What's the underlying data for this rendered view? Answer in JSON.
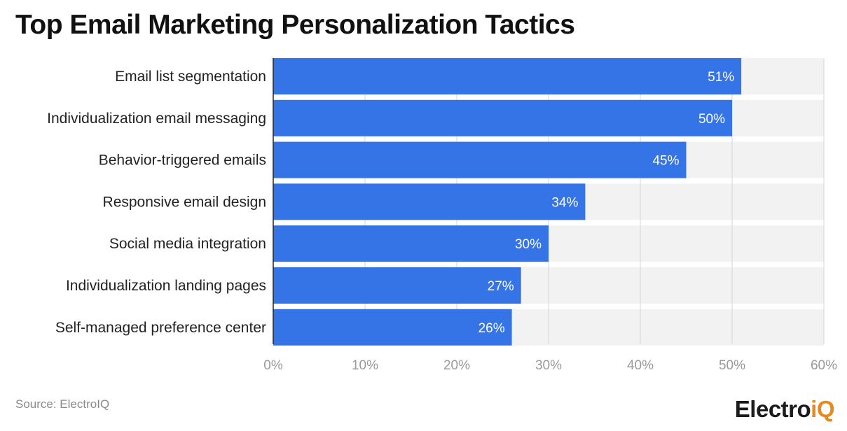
{
  "title": "Top Email Marketing Personalization Tactics",
  "source": "Source: ElectroIQ",
  "logo": {
    "text_main": "Electro",
    "text_accent": "iQ"
  },
  "colors": {
    "bar": "#3574e6",
    "track": "#f2f2f2",
    "grid": "#d6d6d6",
    "axis": "#222222",
    "tick": "#9a9a9a",
    "label": "#222222",
    "value_label": "#ffffff"
  },
  "chart_data": {
    "type": "bar",
    "orientation": "horizontal",
    "title": "Top Email Marketing Personalization Tactics",
    "categories": [
      "Email list segmentation",
      "Individualization email messaging",
      "Behavior-triggered emails",
      "Responsive email design",
      "Social media integration",
      "Individualization landing pages",
      "Self-managed preference center"
    ],
    "values": [
      51,
      50,
      45,
      34,
      30,
      27,
      26
    ],
    "value_labels": [
      "51%",
      "50%",
      "45%",
      "34%",
      "30%",
      "27%",
      "26%"
    ],
    "xlim": [
      0,
      60
    ],
    "x_ticks": [
      0,
      10,
      20,
      30,
      40,
      50,
      60
    ],
    "x_tick_labels": [
      "0%",
      "10%",
      "20%",
      "30%",
      "40%",
      "50%",
      "60%"
    ],
    "xlabel": "",
    "ylabel": "",
    "grid": true
  }
}
